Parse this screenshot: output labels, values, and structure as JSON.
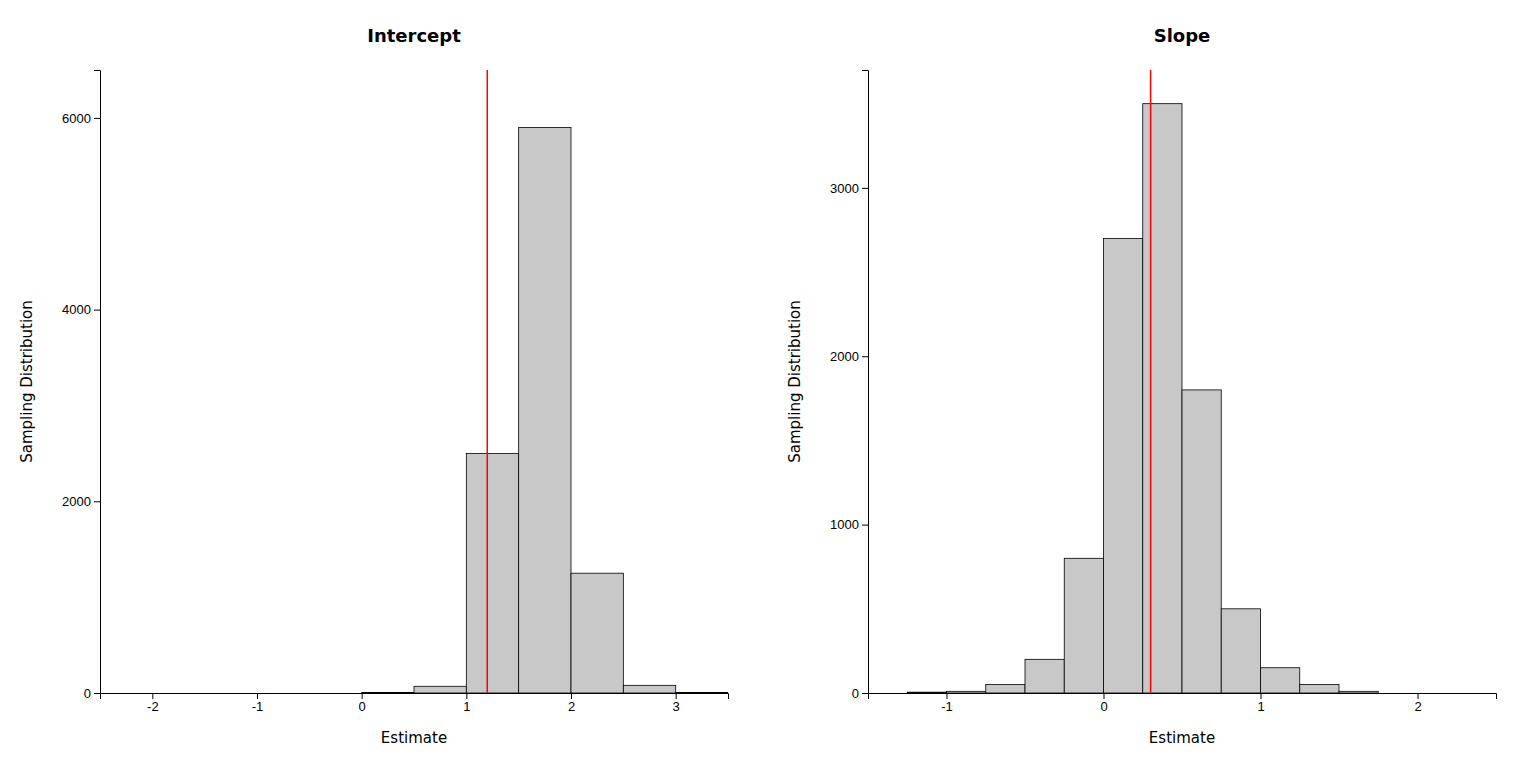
{
  "chart_data": [
    {
      "type": "histogram",
      "title": "Intercept",
      "xlabel": "Estimate",
      "ylabel": "Sampling Distribution",
      "bins": [
        -2.5,
        -2.0,
        -1.5,
        -1.0,
        -0.5,
        0.0,
        0.5,
        1.0,
        1.5,
        2.0,
        2.5,
        3.0,
        3.5
      ],
      "values": [
        0,
        0,
        0,
        0,
        0,
        5,
        70,
        2500,
        5900,
        1250,
        80,
        5
      ],
      "true_value": 1.2,
      "color": "#c8c8c8",
      "xlim": [
        -2.5,
        3.5
      ],
      "ylim": [
        0,
        6500
      ],
      "xticks": [
        -2,
        -1,
        0,
        1,
        2,
        3
      ],
      "yticks": [
        0,
        2000,
        4000,
        6000
      ],
      "grid": false
    },
    {
      "type": "histogram",
      "title": "Slope",
      "xlabel": "Estimate",
      "ylabel": "Sampling Distribution",
      "bins": [
        -1.25,
        -1.0,
        -0.75,
        -0.5,
        -0.25,
        0.0,
        0.25,
        0.5,
        0.75,
        1.0,
        1.25,
        1.5,
        1.75
      ],
      "values": [
        5,
        10,
        50,
        200,
        800,
        2700,
        3500,
        1800,
        500,
        150,
        50,
        10
      ],
      "true_value": 0.3,
      "color": "#c8c8c8",
      "xlim": [
        -1.5,
        2.5
      ],
      "ylim": [
        0,
        3700
      ],
      "xticks": [
        -1,
        0,
        1,
        2
      ],
      "yticks": [
        0,
        1000,
        2000,
        3000
      ],
      "grid": false
    }
  ]
}
